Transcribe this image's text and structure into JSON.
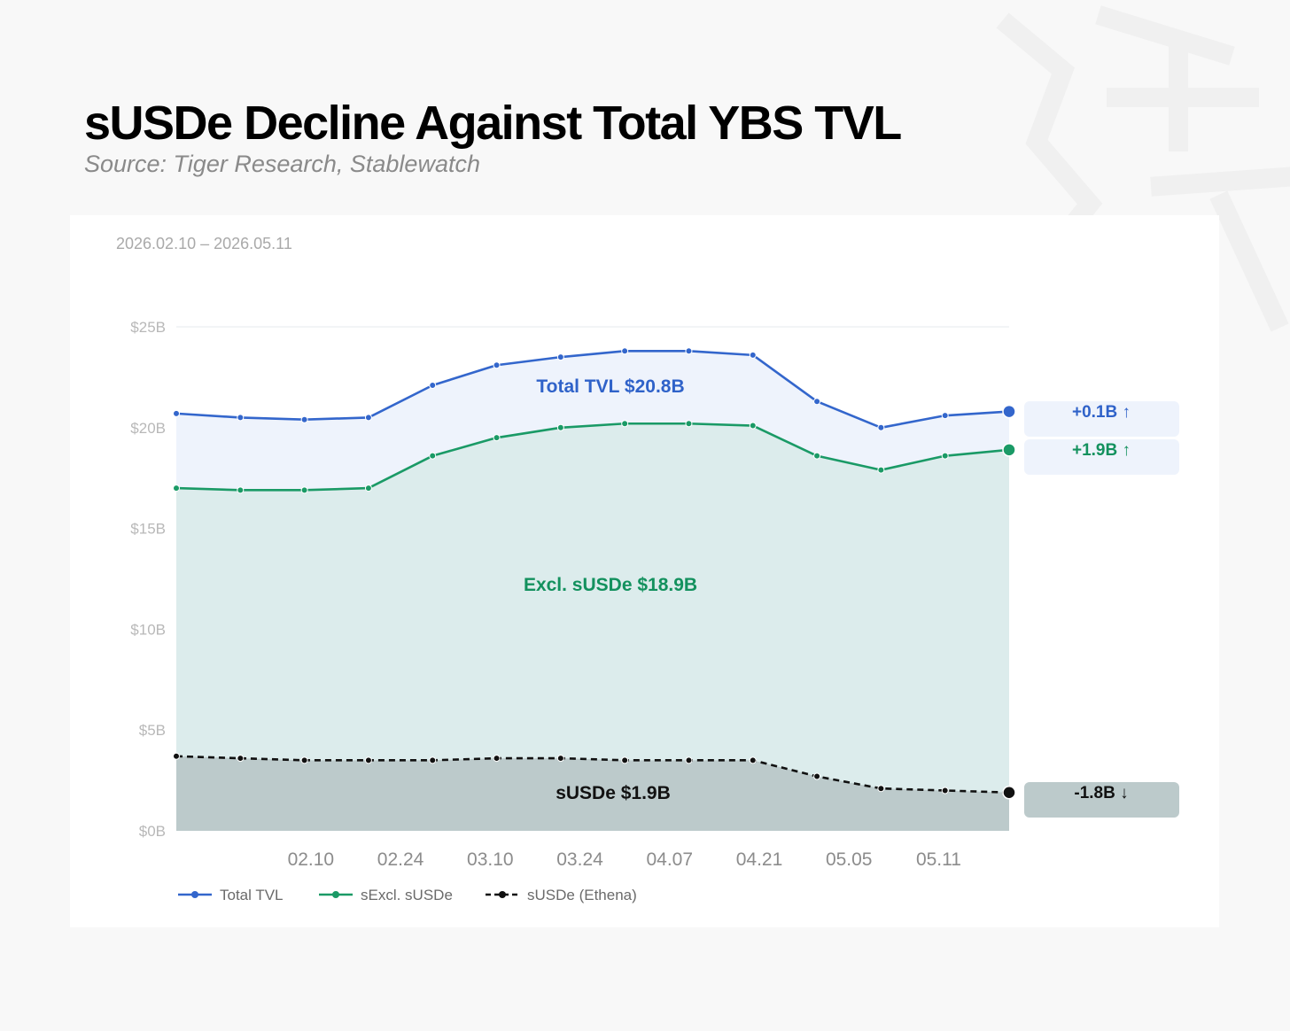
{
  "title": "sUSDe Decline Against Total YBS TVL",
  "subtitle": "Source: Tiger Research, Stablewatch",
  "chart_data": {
    "type": "area",
    "date_range": "2026.02.10 – 2026.05.11",
    "ylim": [
      0,
      25
    ],
    "y_ticks": [
      "$0B",
      "$5B",
      "$10B",
      "$15B",
      "$20B",
      "$25B"
    ],
    "y_tick_values": [
      0,
      5,
      10,
      15,
      20,
      25
    ],
    "x_tick_labels": [
      "02.10",
      "02.24",
      "03.10",
      "03.24",
      "04.07",
      "04.21",
      "05.05",
      "05.11"
    ],
    "x_tick_positions": [
      2.1,
      3.5,
      4.9,
      6.3,
      7.7,
      9.1,
      10.5,
      11.9
    ],
    "x_count": 14,
    "series": [
      {
        "name": "Total TVL",
        "color": "#3366cc",
        "fill": "#eef3fc",
        "values": [
          20.7,
          20.5,
          20.4,
          20.5,
          22.1,
          23.1,
          23.5,
          23.8,
          23.8,
          23.6,
          21.3,
          20.0,
          20.6,
          20.8
        ]
      },
      {
        "name": "sExcl. sUSDe",
        "color": "#1a9a66",
        "fill": "#dcecec",
        "values": [
          17.0,
          16.9,
          16.9,
          17.0,
          18.6,
          19.5,
          20.0,
          20.2,
          20.2,
          20.1,
          18.6,
          17.9,
          18.6,
          18.9
        ]
      },
      {
        "name": "sUSDe (Ethena)",
        "color": "#111111",
        "fill": "#bccacb",
        "dashed": true,
        "values": [
          3.7,
          3.6,
          3.5,
          3.5,
          3.5,
          3.6,
          3.6,
          3.5,
          3.5,
          3.5,
          2.7,
          2.1,
          2.0,
          1.9
        ]
      }
    ],
    "annotations": {
      "total": "Total TVL $20.8B",
      "excl": "Excl. sUSDe $18.9B",
      "susde": "sUSDe $1.9B"
    },
    "deltas": [
      {
        "text": "+0.1B ↑",
        "color": "#2f62c9",
        "bg": "#eef3fc"
      },
      {
        "text": "+1.9B ↑",
        "color": "#13915e",
        "bg": "#eef3fc"
      },
      {
        "text": "-1.8B ↓",
        "color": "#111111",
        "bg": "#bccacb"
      }
    ],
    "legend": {
      "position": "bottom-left",
      "labels": [
        "Total TVL",
        "sExcl. sUSDe",
        "sUSDe (Ethena)"
      ]
    }
  }
}
